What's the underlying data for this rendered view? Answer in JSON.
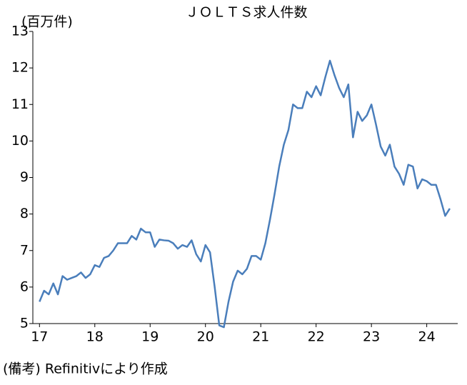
{
  "chart_data": {
    "type": "line",
    "title": "ＪＯＬＴＳ求人件数",
    "y_unit_label": "(百万件)",
    "note": "(備考) Refinitivにより作成",
    "x": [
      17,
      17.083,
      17.167,
      17.25,
      17.333,
      17.417,
      17.5,
      17.583,
      17.667,
      17.75,
      17.833,
      17.917,
      18,
      18.083,
      18.167,
      18.25,
      18.333,
      18.417,
      18.5,
      18.583,
      18.667,
      18.75,
      18.833,
      18.917,
      19,
      19.083,
      19.167,
      19.25,
      19.333,
      19.417,
      19.5,
      19.583,
      19.667,
      19.75,
      19.833,
      19.917,
      20,
      20.083,
      20.167,
      20.25,
      20.333,
      20.417,
      20.5,
      20.583,
      20.667,
      20.75,
      20.833,
      20.917,
      21,
      21.083,
      21.167,
      21.25,
      21.333,
      21.417,
      21.5,
      21.583,
      21.667,
      21.75,
      21.833,
      21.917,
      22,
      22.083,
      22.167,
      22.25,
      22.333,
      22.417,
      22.5,
      22.583,
      22.667,
      22.75,
      22.833,
      22.917,
      23,
      23.083,
      23.167,
      23.25,
      23.333,
      23.417,
      23.5,
      23.583,
      23.667,
      23.75,
      23.833,
      23.917,
      24,
      24.083,
      24.167,
      24.25,
      24.333,
      24.417
    ],
    "series": [
      {
        "name": "JOLTS求人件数",
        "color": "#4a7ebb",
        "values": [
          5.6,
          5.9,
          5.8,
          6.1,
          5.8,
          6.3,
          6.2,
          6.25,
          6.3,
          6.4,
          6.25,
          6.35,
          6.6,
          6.55,
          6.8,
          6.85,
          7.0,
          7.2,
          7.2,
          7.2,
          7.4,
          7.3,
          7.6,
          7.5,
          7.5,
          7.1,
          7.3,
          7.28,
          7.27,
          7.2,
          7.05,
          7.15,
          7.1,
          7.28,
          6.9,
          6.7,
          7.15,
          6.95,
          6.0,
          4.95,
          4.9,
          5.6,
          6.15,
          6.45,
          6.35,
          6.5,
          6.85,
          6.85,
          6.75,
          7.2,
          7.85,
          8.55,
          9.3,
          9.9,
          10.3,
          11.0,
          10.9,
          10.9,
          11.35,
          11.2,
          11.5,
          11.25,
          11.75,
          12.2,
          11.8,
          11.45,
          11.2,
          11.55,
          10.1,
          10.8,
          10.55,
          10.7,
          11.0,
          10.45,
          9.85,
          9.6,
          9.9,
          9.3,
          9.1,
          8.8,
          9.35,
          9.3,
          8.7,
          8.95,
          8.9,
          8.8,
          8.8,
          8.4,
          7.95,
          8.15
        ]
      }
    ],
    "xlim": [
      16.88,
      24.56
    ],
    "ylim": [
      5,
      13
    ],
    "xticks": [
      17,
      18,
      19,
      20,
      21,
      22,
      23,
      24
    ],
    "yticks": [
      5,
      6,
      7,
      8,
      9,
      10,
      11,
      12,
      13
    ]
  }
}
